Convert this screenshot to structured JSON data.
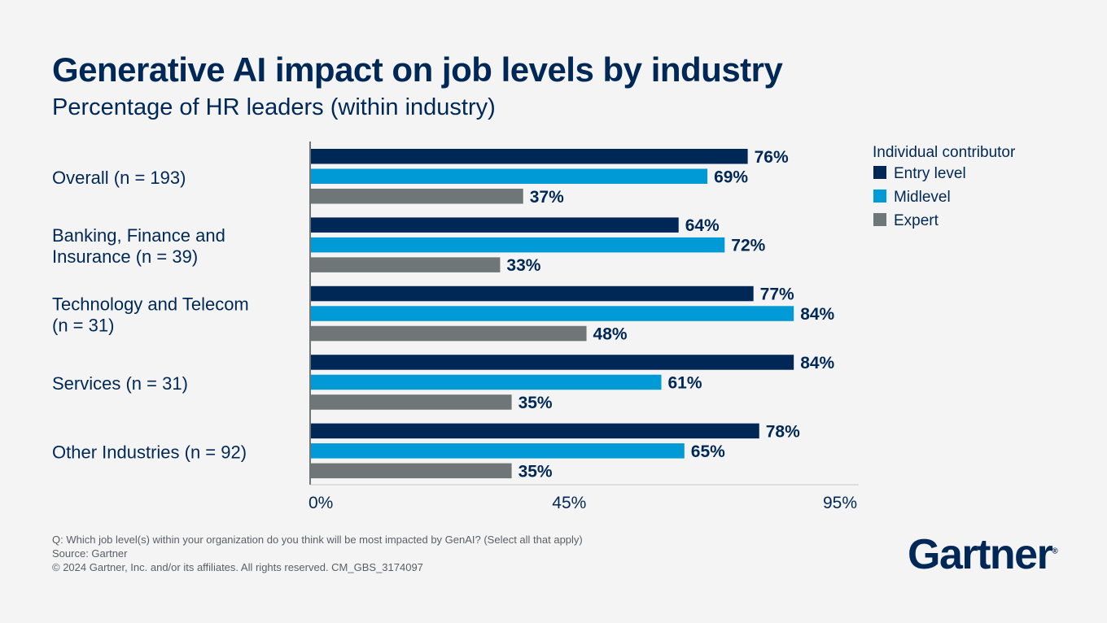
{
  "title": "Generative AI impact on job levels by industry",
  "subtitle": "Percentage of HR leaders (within industry)",
  "chart_data": {
    "type": "bar",
    "orientation": "horizontal",
    "categories": [
      "Overall (n = 193)",
      "Banking, Finance and Insurance (n = 39)",
      "Technology and Telecom (n = 31)",
      "Services (n = 31)",
      "Other Industries (n = 92)"
    ],
    "category_lines": [
      [
        "Overall (n = 193)"
      ],
      [
        "Banking, Finance and",
        "Insurance (n = 39)"
      ],
      [
        "Technology and Telecom",
        "(n = 31)"
      ],
      [
        "Services (n = 31)"
      ],
      [
        "Other Industries (n = 92)"
      ]
    ],
    "legend_title": "Individual contributor",
    "legend_placement": "top-right",
    "series": [
      {
        "name": "Entry level",
        "color": "#002856",
        "values": [
          76,
          64,
          77,
          84,
          78
        ]
      },
      {
        "name": "Midlevel",
        "color": "#009ad7",
        "values": [
          69,
          72,
          84,
          61,
          65
        ]
      },
      {
        "name": "Expert",
        "color": "#6e7677",
        "values": [
          37,
          33,
          48,
          35,
          35
        ]
      }
    ],
    "xlim": [
      0,
      95
    ],
    "xticks": [
      0,
      45,
      95
    ],
    "xtick_labels": [
      "0%",
      "45%",
      "95%"
    ],
    "value_suffix": "%",
    "grid": false
  },
  "footer": {
    "question": "Q: Which job level(s) within your organization do you think will be most impacted by GenAI? (Select all that apply)",
    "source": "Source: Gartner",
    "copyright": "© 2024 Gartner, Inc. and/or its affiliates. All rights reserved. CM_GBS_3174097"
  },
  "logo": {
    "text": "Gartner",
    "mark": "®"
  }
}
